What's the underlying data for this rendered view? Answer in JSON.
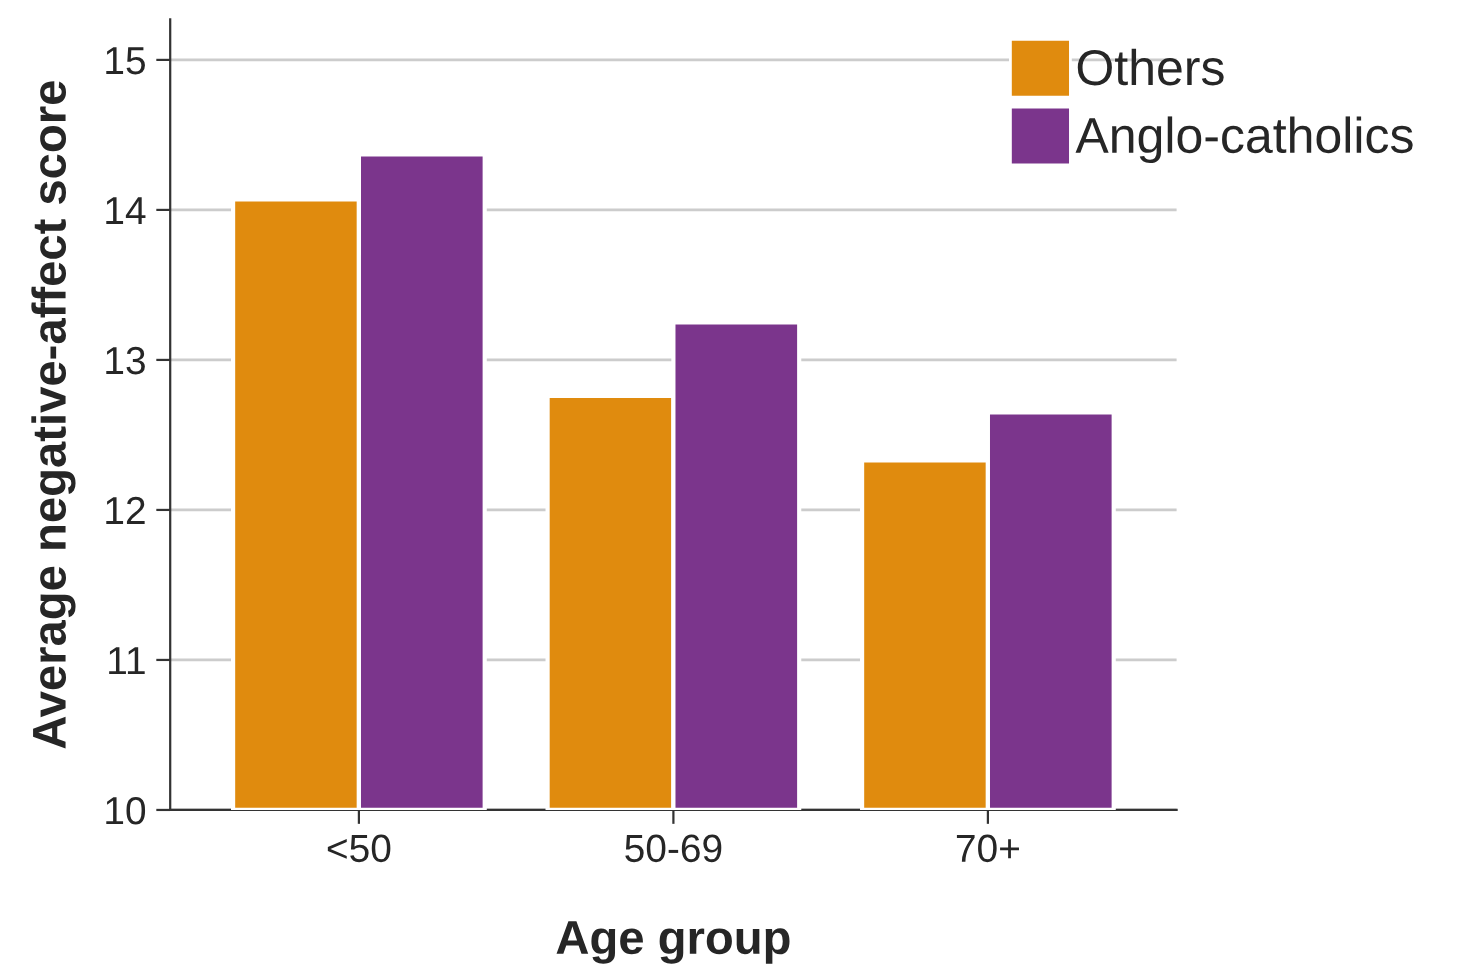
{
  "chart_data": {
    "type": "bar",
    "xlabel": "Age group",
    "ylabel": "Average negative-affect score",
    "categories": [
      "<50",
      "50-69",
      "70+"
    ],
    "series": [
      {
        "name": "Others",
        "color": "#e08b0e",
        "values": [
          14.07,
          12.76,
          12.33
        ]
      },
      {
        "name": "Anglo-catholics",
        "color": "#7b358c",
        "values": [
          14.37,
          13.25,
          12.65
        ]
      }
    ],
    "ylim": [
      10,
      15.27
    ],
    "yticks": [
      10,
      11,
      12,
      13,
      14,
      15
    ],
    "grid": "y",
    "legend": "top right"
  }
}
